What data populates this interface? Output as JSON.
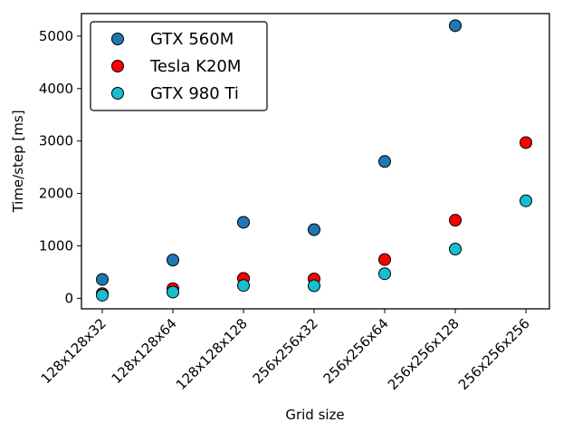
{
  "chart_data": {
    "type": "scatter",
    "title": "",
    "xlabel": "Grid size",
    "ylabel": "Time/step [ms]",
    "categories": [
      "128x128x32",
      "128x128x64",
      "128x128x128",
      "256x256x32",
      "256x256x64",
      "256x256x128",
      "256x256x256"
    ],
    "yticks": [
      0,
      1000,
      2000,
      3000,
      4000,
      5000
    ],
    "ylim": [
      -200,
      5430
    ],
    "legend_position": "top-left",
    "series": [
      {
        "name": "GTX 560M",
        "color": "#1f77b4",
        "values": [
          360,
          730,
          1450,
          1310,
          2610,
          5200,
          null
        ]
      },
      {
        "name": "Tesla K20M",
        "color": "#ff0000",
        "values": [
          90,
          185,
          380,
          370,
          740,
          1490,
          2970
        ]
      },
      {
        "name": "GTX 980 Ti",
        "color": "#17becf",
        "values": [
          60,
          120,
          245,
          240,
          470,
          940,
          1860
        ]
      }
    ]
  }
}
